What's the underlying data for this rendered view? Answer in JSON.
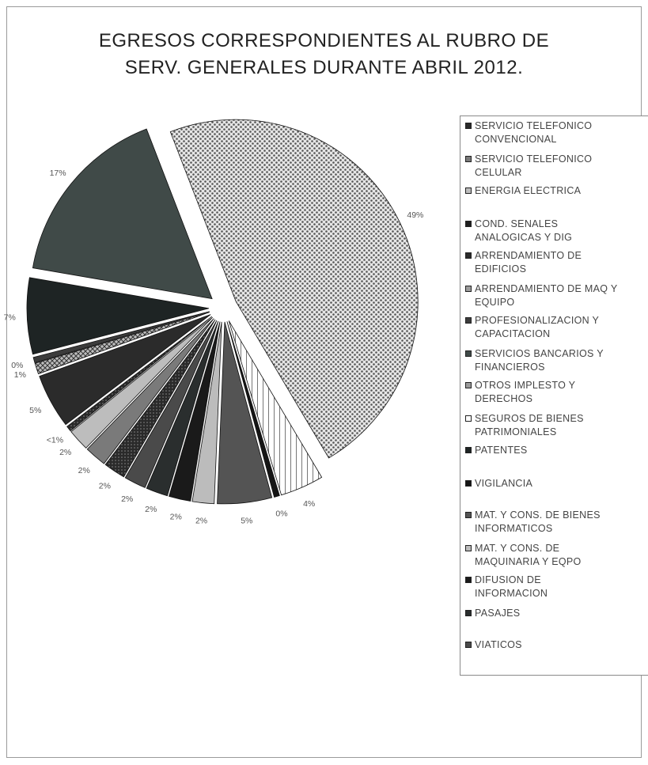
{
  "chart_data": {
    "type": "pie",
    "title": [
      "EGRESOS CORRESPONDIENTES AL RUBRO DE",
      "SERV. GENERALES DURANTE ABRIL 2012."
    ],
    "legend_position": "right",
    "slice_order": [
      "PATENTES",
      "SERVICIOS BANCARIOS Y FINANCIEROS",
      "OTROS IMPLESTO Y DERECHOS",
      "SEGUROS DE BIENES PATRIMONIALES",
      "VIGILANCIA",
      "MAT. Y CONS. DE BIENES INFORMATICOS",
      "MAT. Y CONS. DE MAQUINARIA Y EQPO",
      "DIFUSION DE INFORMACION",
      "PASAJES",
      "VIATICOS",
      "SERVICIO TELEFONICO CONVENCIONAL",
      "SERVICIO TELEFONICO CELULAR",
      "ENERGIA ELECTRICA",
      "COND. SENALES ANALOGICAS Y DIG",
      "ARRENDAMIENTO DE EDIFICIOS",
      "ARRENDAMIENTO DE MAQ Y EQUIPO",
      "PROFESIONALIZACION Y CAPACITACION"
    ],
    "slices": [
      {
        "label": "SERVICIO TELEFONICO CONVENCIONAL",
        "legend": "SERVICIO TELEFONICO\nCONVENCIONAL",
        "value": 2,
        "pct_label": "2%",
        "color": "#2a2a2a",
        "pattern": "dots"
      },
      {
        "label": "SERVICIO TELEFONICO CELULAR",
        "legend": "SERVICIO TELEFONICO\nCELULAR",
        "value": 2,
        "pct_label": "2%",
        "color": "#7a7a7a",
        "pattern": "solid"
      },
      {
        "label": "ENERGIA ELECTRICA",
        "legend": "ENERGIA ELECTRICA",
        "value": 2,
        "pct_label": "2%",
        "color": "#bdbdbd",
        "pattern": "solid"
      },
      {
        "label": "COND. SENALES ANALOGICAS Y DIG",
        "legend": "COND. SENALES\nANALOGICAS Y DIG",
        "value": 0.5,
        "pct_label": "<1%",
        "color": "#1e1e1e",
        "pattern": "dots"
      },
      {
        "label": "ARRENDAMIENTO DE EDIFICIOS",
        "legend": "ARRENDAMIENTO DE\nEDIFICIOS",
        "value": 5,
        "pct_label": "5%",
        "color": "#2b2b2b",
        "pattern": "solid"
      },
      {
        "label": "ARRENDAMIENTO DE MAQ Y EQUIPO",
        "legend": "ARRENDAMIENTO DE MAQ Y\nEQUIPO",
        "value": 1,
        "pct_label": "1%",
        "color": "#6a6a6a",
        "pattern": "cross"
      },
      {
        "label": "PROFESIONALIZACION Y CAPACITACION",
        "legend": "PROFESIONALIZACION Y\nCAPACITACION",
        "value": 0.5,
        "pct_label": "0%",
        "color": "#3c3c3c",
        "pattern": "solid"
      },
      {
        "label": "SERVICIOS BANCARIOS Y FINANCIEROS",
        "legend": "SERVICIOS BANCARIOS Y\nFINANCIEROS",
        "value": 17,
        "pct_label": "17%",
        "color": "#404a48",
        "pattern": "solid"
      },
      {
        "label": "OTROS IMPLESTO Y DERECHOS",
        "legend": "OTROS IMPLESTO Y\nDERECHOS",
        "value": 49,
        "pct_label": "49%",
        "color": "#cfcfcf",
        "pattern": "checker"
      },
      {
        "label": "SEGUROS DE BIENES PATRIMONIALES",
        "legend": "SEGUROS DE BIENES\nPATRIMONIALES",
        "value": 4,
        "pct_label": "4%",
        "color": "#ffffff",
        "pattern": "vlines"
      },
      {
        "label": "PATENTES",
        "legend": "PATENTES",
        "value": 7,
        "pct_label": "7%",
        "color": "#1e2424",
        "pattern": "solid"
      },
      {
        "label": "VIGILANCIA",
        "legend": "VIGILANCIA",
        "value": 0.5,
        "pct_label": "0%",
        "color": "#151515",
        "pattern": "solid"
      },
      {
        "label": "MAT. Y CONS. DE BIENES INFORMATICOS",
        "legend": "MAT. Y CONS. DE BIENES\nINFORMATICOS",
        "value": 5,
        "pct_label": "5%",
        "color": "#545454",
        "pattern": "solid"
      },
      {
        "label": "MAT. Y CONS. DE MAQUINARIA Y EQPO",
        "legend": "MAT. Y CONS. DE\nMAQUINARIA Y EQPO",
        "value": 2,
        "pct_label": "2%",
        "color": "#bcbcbc",
        "pattern": "solid"
      },
      {
        "label": "DIFUSION DE INFORMACION",
        "legend": "DIFUSION DE\nINFORMACION",
        "value": 2,
        "pct_label": "2%",
        "color": "#1a1a1a",
        "pattern": "solid"
      },
      {
        "label": "PASAJES",
        "legend": "PASAJES",
        "value": 2,
        "pct_label": "2%",
        "color": "#2a2e2e",
        "pattern": "solid"
      },
      {
        "label": "VIATICOS",
        "legend": "VIATICOS",
        "value": 2,
        "pct_label": "2%",
        "color": "#4a4a4a",
        "pattern": "solid"
      }
    ]
  }
}
